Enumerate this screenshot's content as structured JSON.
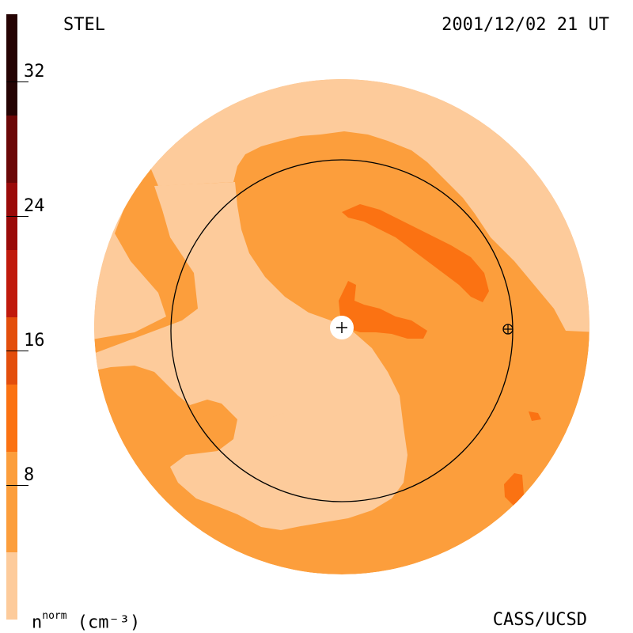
{
  "header": {
    "left_label": "STEL",
    "right_label": "2001/12/02 21 UT"
  },
  "footer": {
    "credit": "CASS/UCSD",
    "units_main": "n",
    "units_sup": "norm",
    "units_tail": " (cm⁻³)"
  },
  "colorbar": {
    "min": 0,
    "max": 36,
    "segments": [
      {
        "from": 0,
        "to": 4,
        "color": "#fdcb9b"
      },
      {
        "from": 4,
        "to": 10,
        "color": "#fc9e3c"
      },
      {
        "from": 10,
        "to": 14,
        "color": "#fb7212"
      },
      {
        "from": 14,
        "to": 18,
        "color": "#e34e0c"
      },
      {
        "from": 18,
        "to": 22,
        "color": "#c0190c"
      },
      {
        "from": 22,
        "to": 26,
        "color": "#9a0a09"
      },
      {
        "from": 26,
        "to": 30,
        "color": "#6b0707"
      },
      {
        "from": 30,
        "to": 36,
        "color": "#250303"
      }
    ],
    "ticks": [
      {
        "value": 8,
        "label": "8"
      },
      {
        "value": 16,
        "label": "16"
      },
      {
        "value": 24,
        "label": "24"
      },
      {
        "value": 32,
        "label": "32"
      }
    ]
  },
  "map_colors": {
    "level_1": "#fdcb9b",
    "level_2": "#fc9e3c",
    "level_3": "#fb7212",
    "sun_marker": "#ffffff",
    "orbit_line": "#000000"
  }
}
